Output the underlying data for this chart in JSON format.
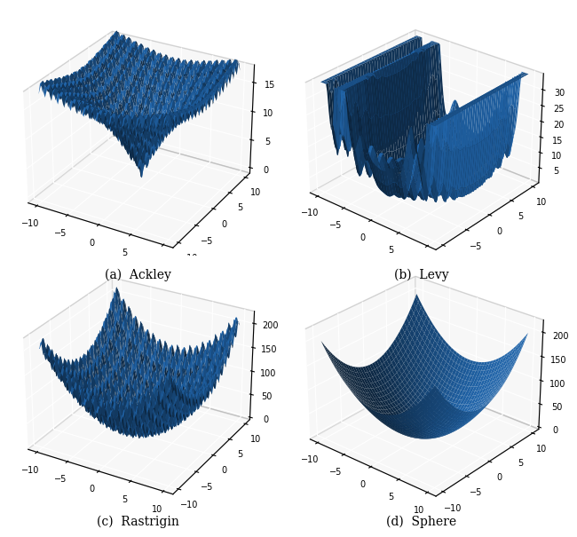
{
  "figsize": [
    6.4,
    6.17
  ],
  "dpi": 100,
  "surface_color": "#2166ac",
  "surface_alpha": 1.0,
  "background_color": "white",
  "pane_color": [
    0.94,
    0.94,
    0.94,
    1.0
  ],
  "x_range": [
    -10,
    10
  ],
  "y_range": [
    -10,
    10
  ],
  "subplots": [
    {
      "label": "(a)  Ackley",
      "func": "ackley",
      "elev": 28,
      "azim": -60,
      "zticks": [
        0,
        5,
        10,
        15
      ],
      "zlim": [
        -1,
        18
      ],
      "pts": 100
    },
    {
      "label": "(b)  Levy",
      "func": "levy",
      "elev": 28,
      "azim": -50,
      "zticks": [
        5,
        10,
        15,
        20,
        25,
        30
      ],
      "zlim": [
        0,
        35
      ],
      "pts": 120
    },
    {
      "label": "(c)  Rastrigin",
      "func": "rastrigin",
      "elev": 28,
      "azim": -60,
      "zticks": [
        0,
        50,
        100,
        150,
        200
      ],
      "zlim": [
        -5,
        225
      ],
      "pts": 150
    },
    {
      "label": "(d)  Sphere",
      "func": "sphere",
      "elev": 28,
      "azim": -50,
      "zticks": [
        0,
        50,
        100,
        150,
        200
      ],
      "zlim": [
        -5,
        225
      ],
      "pts": 80
    }
  ]
}
